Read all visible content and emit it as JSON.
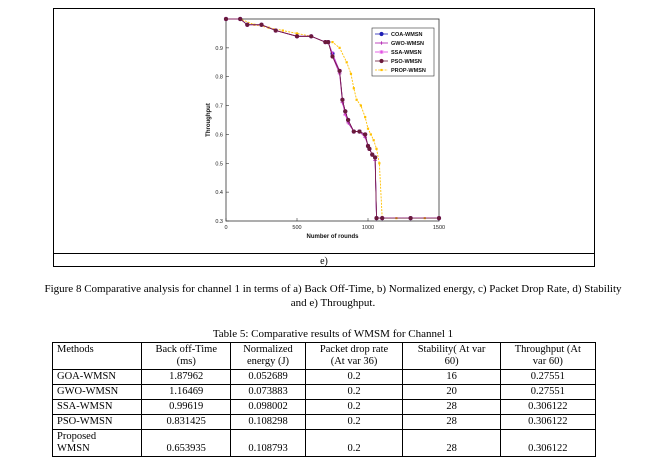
{
  "figure": {
    "subfigure_label": "e)",
    "caption_line1": "Figure 8  Comparative analysis for channel 1 in terms of a) Back Off-Time, b) Normalized energy, c) Packet Drop Rate, d) Stability",
    "caption_line2": "and e) Throughput."
  },
  "chart_data": {
    "type": "line",
    "title": "",
    "xlabel": "Number of rounds",
    "ylabel": "Throughput",
    "xlim": [
      0,
      1500
    ],
    "ylim": [
      0.3,
      1.0
    ],
    "xticks": [
      0,
      500,
      1000,
      1500
    ],
    "yticks": [
      0.3,
      0.4,
      0.5,
      0.6,
      0.7,
      0.8,
      0.9
    ],
    "grid": false,
    "legend_position": "top-right",
    "series": [
      {
        "name": "COA-WMSN",
        "color": "#1f1fb4",
        "marker": "circle",
        "x": [
          0,
          100,
          150,
          250,
          350,
          500,
          600,
          700,
          720,
          750,
          800,
          820,
          840,
          860,
          900,
          940,
          980,
          1000,
          1010,
          1030,
          1050,
          1060,
          1100,
          1300,
          1500
        ],
        "y": [
          1.0,
          1.0,
          0.98,
          0.98,
          0.96,
          0.94,
          0.94,
          0.92,
          0.92,
          0.88,
          0.82,
          0.72,
          0.68,
          0.65,
          0.61,
          0.61,
          0.6,
          0.56,
          0.55,
          0.53,
          0.52,
          0.31,
          0.31,
          0.31,
          0.31
        ]
      },
      {
        "name": "GWO-WMSN",
        "color": "#b01fb0",
        "marker": "plus",
        "x": [
          0,
          100,
          150,
          250,
          350,
          500,
          600,
          700,
          720,
          750,
          800,
          820,
          840,
          860,
          900,
          940,
          980,
          1000,
          1010,
          1030,
          1050,
          1060,
          1100,
          1300,
          1500
        ],
        "y": [
          1.0,
          1.0,
          0.98,
          0.98,
          0.96,
          0.94,
          0.94,
          0.92,
          0.92,
          0.87,
          0.81,
          0.71,
          0.67,
          0.64,
          0.61,
          0.61,
          0.59,
          0.56,
          0.55,
          0.53,
          0.51,
          0.31,
          0.31,
          0.31,
          0.31
        ]
      },
      {
        "name": "SSA-WMSN",
        "color": "#e040e0",
        "marker": "star",
        "x": [
          0,
          100,
          150,
          250,
          350,
          500,
          600,
          700,
          720,
          750,
          800,
          820,
          840,
          860,
          900,
          940,
          980,
          1000,
          1010,
          1030,
          1050,
          1060,
          1100,
          1300,
          1500
        ],
        "y": [
          1.0,
          1.0,
          0.98,
          0.98,
          0.96,
          0.94,
          0.94,
          0.92,
          0.92,
          0.88,
          0.82,
          0.72,
          0.67,
          0.65,
          0.61,
          0.61,
          0.6,
          0.56,
          0.55,
          0.53,
          0.52,
          0.31,
          0.31,
          0.31,
          0.31
        ]
      },
      {
        "name": "PSO-WMSN",
        "color": "#6b1a3a",
        "marker": "circle",
        "x": [
          0,
          100,
          150,
          250,
          350,
          500,
          600,
          700,
          720,
          750,
          800,
          820,
          840,
          860,
          900,
          940,
          980,
          1000,
          1010,
          1030,
          1050,
          1060,
          1100,
          1300,
          1500
        ],
        "y": [
          1.0,
          1.0,
          0.98,
          0.98,
          0.96,
          0.94,
          0.94,
          0.92,
          0.92,
          0.87,
          0.82,
          0.72,
          0.68,
          0.65,
          0.61,
          0.61,
          0.6,
          0.56,
          0.55,
          0.53,
          0.52,
          0.31,
          0.31,
          0.31,
          0.31
        ]
      },
      {
        "name": "PROP-WMSN",
        "color": "#ffc000",
        "marker": "dot",
        "x": [
          0,
          100,
          200,
          300,
          400,
          500,
          600,
          700,
          750,
          800,
          850,
          880,
          900,
          920,
          950,
          980,
          1000,
          1020,
          1040,
          1060,
          1080,
          1100,
          1200,
          1300,
          1400,
          1500
        ],
        "y": [
          1.0,
          1.0,
          0.98,
          0.97,
          0.96,
          0.95,
          0.94,
          0.92,
          0.92,
          0.9,
          0.85,
          0.81,
          0.76,
          0.72,
          0.7,
          0.66,
          0.62,
          0.6,
          0.58,
          0.55,
          0.5,
          0.31,
          0.31,
          0.31,
          0.31,
          0.31
        ]
      }
    ]
  },
  "table": {
    "title": "Table 5: Comparative results of WMSM for Channel 1",
    "headers": [
      [
        "Methods",
        ""
      ],
      [
        "Back off-Time",
        "(ms)"
      ],
      [
        "Normalized",
        "energy (J)"
      ],
      [
        "Packet drop rate",
        "(At var 36)"
      ],
      [
        "Stability( At var",
        "60)"
      ],
      [
        "Throughput (At",
        "var 60)"
      ]
    ],
    "rows": [
      [
        "GOA-WMSN",
        "1.87962",
        "0.052689",
        "0.2",
        "16",
        "0.27551"
      ],
      [
        "GWO-WMSN",
        "1.16469",
        "0.073883",
        "0.2",
        "20",
        "0.27551"
      ],
      [
        "SSA-WMSN",
        "0.99619",
        "0.098002",
        "0.2",
        "28",
        "0.306122"
      ],
      [
        "PSO-WMSN",
        "0.831425",
        "0.108298",
        "0.2",
        "28",
        "0.306122"
      ]
    ],
    "last_row": {
      "method_line1": "Proposed",
      "method_line2": "WMSN",
      "values": [
        "0.653935",
        "0.108793",
        "0.2",
        "28",
        "0.306122"
      ]
    }
  }
}
